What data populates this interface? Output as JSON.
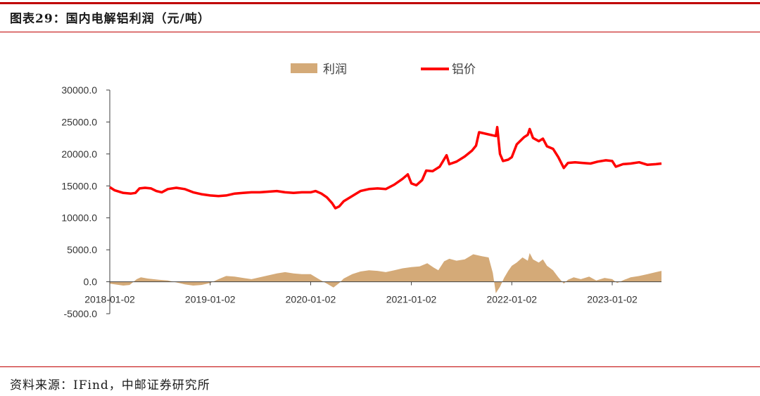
{
  "header": {
    "title": "图表29：国内电解铝利润（元/吨）"
  },
  "footer": {
    "source": "资料来源：IFind，中邮证券研究所"
  },
  "colors": {
    "rule": "#c00000",
    "price_line": "#ff0000",
    "profit_area": "#d4aa78",
    "axis": "#404040"
  },
  "chart_data": {
    "type": "line",
    "title": "",
    "xlabel": "",
    "ylabel": "",
    "ylim": [
      -5000,
      30000
    ],
    "yticks": [
      30000,
      25000,
      20000,
      15000,
      10000,
      5000,
      0,
      -5000
    ],
    "ytick_labels": [
      "30000.0",
      "25000.0",
      "20000.0",
      "15000.0",
      "10000.0",
      "5000.0",
      "0.0",
      "-5000.0"
    ],
    "xticks": [
      "2018-01-02",
      "2019-01-02",
      "2020-01-02",
      "2021-01-02",
      "2022-01-02",
      "2023-01-02"
    ],
    "xlim": [
      "2018-01-02",
      "2023-06-30"
    ],
    "legend": {
      "placement": "top-center",
      "entries": [
        "利润",
        "铝价"
      ]
    },
    "grid": false,
    "series": [
      {
        "name": "利润",
        "type": "area",
        "points": [
          [
            "2018-01-02",
            -300
          ],
          [
            "2018-02-20",
            -600
          ],
          [
            "2018-03-15",
            -500
          ],
          [
            "2018-04-10",
            400
          ],
          [
            "2018-04-25",
            700
          ],
          [
            "2018-05-20",
            500
          ],
          [
            "2018-06-30",
            300
          ],
          [
            "2018-08-01",
            200
          ],
          [
            "2018-09-01",
            -100
          ],
          [
            "2018-10-01",
            -400
          ],
          [
            "2018-11-01",
            -600
          ],
          [
            "2018-12-01",
            -500
          ],
          [
            "2019-01-02",
            -200
          ],
          [
            "2019-02-01",
            400
          ],
          [
            "2019-03-01",
            900
          ],
          [
            "2019-04-01",
            800
          ],
          [
            "2019-05-01",
            600
          ],
          [
            "2019-06-01",
            400
          ],
          [
            "2019-07-01",
            700
          ],
          [
            "2019-08-01",
            1000
          ],
          [
            "2019-09-01",
            1300
          ],
          [
            "2019-10-01",
            1500
          ],
          [
            "2019-11-01",
            1300
          ],
          [
            "2019-12-01",
            1200
          ],
          [
            "2020-01-02",
            1200
          ],
          [
            "2020-02-01",
            400
          ],
          [
            "2020-03-01",
            -300
          ],
          [
            "2020-03-25",
            -900
          ],
          [
            "2020-04-15",
            -200
          ],
          [
            "2020-05-01",
            500
          ],
          [
            "2020-06-01",
            1200
          ],
          [
            "2020-07-01",
            1600
          ],
          [
            "2020-08-01",
            1800
          ],
          [
            "2020-09-01",
            1700
          ],
          [
            "2020-10-01",
            1500
          ],
          [
            "2020-11-01",
            1800
          ],
          [
            "2020-12-01",
            2100
          ],
          [
            "2021-01-02",
            2300
          ],
          [
            "2021-02-01",
            2400
          ],
          [
            "2021-03-01",
            2900
          ],
          [
            "2021-03-25",
            2200
          ],
          [
            "2021-04-10",
            1800
          ],
          [
            "2021-05-01",
            3200
          ],
          [
            "2021-05-20",
            3600
          ],
          [
            "2021-06-15",
            3300
          ],
          [
            "2021-07-15",
            3500
          ],
          [
            "2021-08-15",
            4300
          ],
          [
            "2021-09-15",
            4000
          ],
          [
            "2021-10-10",
            3800
          ],
          [
            "2021-10-25",
            1400
          ],
          [
            "2021-11-05",
            -1800
          ],
          [
            "2021-11-20",
            -800
          ],
          [
            "2021-12-05",
            600
          ],
          [
            "2021-12-20",
            1700
          ],
          [
            "2022-01-02",
            2500
          ],
          [
            "2022-01-20",
            3000
          ],
          [
            "2022-02-10",
            3800
          ],
          [
            "2022-03-01",
            3300
          ],
          [
            "2022-03-08",
            4500
          ],
          [
            "2022-03-20",
            3500
          ],
          [
            "2022-04-10",
            3000
          ],
          [
            "2022-04-25",
            3500
          ],
          [
            "2022-05-10",
            2500
          ],
          [
            "2022-06-01",
            1800
          ],
          [
            "2022-06-20",
            700
          ],
          [
            "2022-07-10",
            -300
          ],
          [
            "2022-07-25",
            300
          ],
          [
            "2022-08-15",
            700
          ],
          [
            "2022-09-10",
            400
          ],
          [
            "2022-10-10",
            800
          ],
          [
            "2022-11-05",
            200
          ],
          [
            "2022-12-05",
            600
          ],
          [
            "2023-01-02",
            400
          ],
          [
            "2023-01-20",
            -200
          ],
          [
            "2023-02-15",
            300
          ],
          [
            "2023-03-10",
            700
          ],
          [
            "2023-04-10",
            900
          ],
          [
            "2023-05-10",
            1200
          ],
          [
            "2023-06-10",
            1500
          ],
          [
            "2023-06-30",
            1700
          ]
        ]
      },
      {
        "name": "铝价",
        "type": "line",
        "points": [
          [
            "2018-01-02",
            14800
          ],
          [
            "2018-01-20",
            14300
          ],
          [
            "2018-02-20",
            13900
          ],
          [
            "2018-03-20",
            13800
          ],
          [
            "2018-04-05",
            13900
          ],
          [
            "2018-04-20",
            14600
          ],
          [
            "2018-05-10",
            14700
          ],
          [
            "2018-06-01",
            14600
          ],
          [
            "2018-06-20",
            14200
          ],
          [
            "2018-07-10",
            14000
          ],
          [
            "2018-08-01",
            14500
          ],
          [
            "2018-09-01",
            14700
          ],
          [
            "2018-10-01",
            14500
          ],
          [
            "2018-11-01",
            14000
          ],
          [
            "2018-12-01",
            13700
          ],
          [
            "2019-01-02",
            13500
          ],
          [
            "2019-02-01",
            13400
          ],
          [
            "2019-03-01",
            13500
          ],
          [
            "2019-04-01",
            13800
          ],
          [
            "2019-05-01",
            13900
          ],
          [
            "2019-06-01",
            14000
          ],
          [
            "2019-07-01",
            14000
          ],
          [
            "2019-08-01",
            14100
          ],
          [
            "2019-09-01",
            14200
          ],
          [
            "2019-10-01",
            14000
          ],
          [
            "2019-11-01",
            13900
          ],
          [
            "2019-12-01",
            14000
          ],
          [
            "2020-01-02",
            14000
          ],
          [
            "2020-01-20",
            14200
          ],
          [
            "2020-02-10",
            13800
          ],
          [
            "2020-03-01",
            13200
          ],
          [
            "2020-03-20",
            12300
          ],
          [
            "2020-04-01",
            11500
          ],
          [
            "2020-04-15",
            11800
          ],
          [
            "2020-05-01",
            12600
          ],
          [
            "2020-06-01",
            13400
          ],
          [
            "2020-07-01",
            14200
          ],
          [
            "2020-08-01",
            14500
          ],
          [
            "2020-09-01",
            14600
          ],
          [
            "2020-10-01",
            14500
          ],
          [
            "2020-11-01",
            15200
          ],
          [
            "2020-12-01",
            16100
          ],
          [
            "2020-12-20",
            16800
          ],
          [
            "2021-01-02",
            15400
          ],
          [
            "2021-01-20",
            15100
          ],
          [
            "2021-02-10",
            15900
          ],
          [
            "2021-02-25",
            17400
          ],
          [
            "2021-03-20",
            17300
          ],
          [
            "2021-04-15",
            18000
          ],
          [
            "2021-05-10",
            19800
          ],
          [
            "2021-05-20",
            18400
          ],
          [
            "2021-06-15",
            18800
          ],
          [
            "2021-07-15",
            19600
          ],
          [
            "2021-08-10",
            20500
          ],
          [
            "2021-08-25",
            21300
          ],
          [
            "2021-09-05",
            23400
          ],
          [
            "2021-11-05",
            22800
          ],
          [
            "2021-11-10",
            24200
          ],
          [
            "2021-11-20",
            20000
          ],
          [
            "2021-12-01",
            18900
          ],
          [
            "2021-12-20",
            19100
          ],
          [
            "2022-01-02",
            19500
          ],
          [
            "2022-01-20",
            21500
          ],
          [
            "2022-02-15",
            22600
          ],
          [
            "2022-03-01",
            23000
          ],
          [
            "2022-03-08",
            23900
          ],
          [
            "2022-03-20",
            22500
          ],
          [
            "2022-04-10",
            22000
          ],
          [
            "2022-04-25",
            22400
          ],
          [
            "2022-05-10",
            21200
          ],
          [
            "2022-06-01",
            20800
          ],
          [
            "2022-06-20",
            19500
          ],
          [
            "2022-07-10",
            17800
          ],
          [
            "2022-07-25",
            18600
          ],
          [
            "2022-08-20",
            18700
          ],
          [
            "2022-09-15",
            18600
          ],
          [
            "2022-10-15",
            18500
          ],
          [
            "2022-11-10",
            18800
          ],
          [
            "2022-12-10",
            19000
          ],
          [
            "2023-01-02",
            18900
          ],
          [
            "2023-01-15",
            18000
          ],
          [
            "2023-02-10",
            18400
          ],
          [
            "2023-03-10",
            18500
          ],
          [
            "2023-04-10",
            18700
          ],
          [
            "2023-05-10",
            18300
          ],
          [
            "2023-06-10",
            18400
          ],
          [
            "2023-06-30",
            18500
          ]
        ]
      }
    ]
  }
}
